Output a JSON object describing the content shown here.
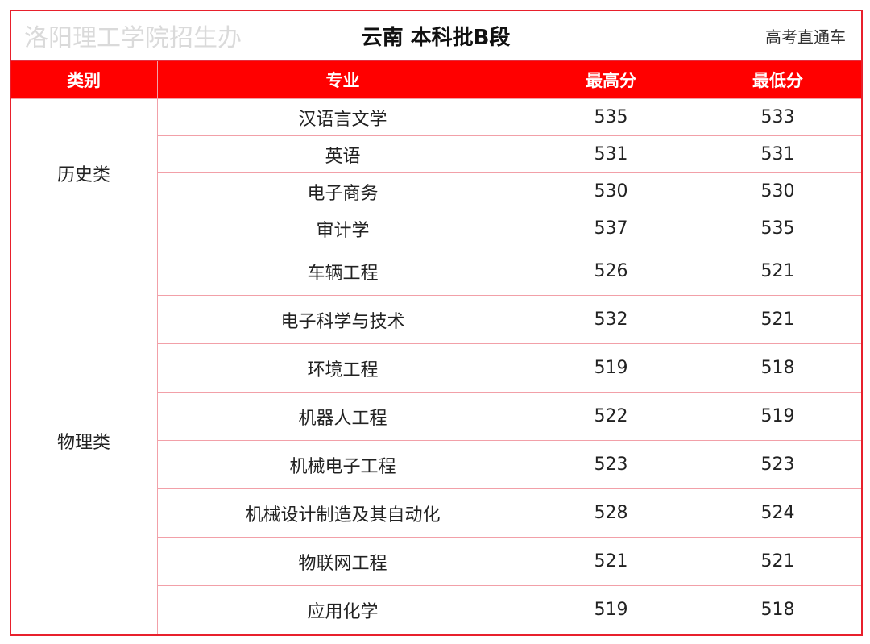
{
  "title": "云南 本科批B段",
  "headers": [
    "类别",
    "专业",
    "最高分",
    "最低分"
  ],
  "groups": [
    {
      "category": "历史类",
      "rows": [
        {
          "major": "汉语言文学",
          "max": "535",
          "min": "533"
        },
        {
          "major": "英语",
          "max": "531",
          "min": "531"
        },
        {
          "major": "电子商务",
          "max": "530",
          "min": "530"
        },
        {
          "major": "审计学",
          "max": "537",
          "min": "535"
        }
      ]
    },
    {
      "category": "物理类",
      "rows": [
        {
          "major": "车辆工程",
          "max": "526",
          "min": "521"
        },
        {
          "major": "电子科学与技术",
          "max": "532",
          "min": "521"
        },
        {
          "major": "环境工程",
          "max": "519",
          "min": "518"
        },
        {
          "major": "机器人工程",
          "max": "522",
          "min": "519"
        },
        {
          "major": "机械电子工程",
          "max": "523",
          "min": "523"
        },
        {
          "major": "机械设计制造及其自动化",
          "max": "528",
          "min": "524"
        },
        {
          "major": "物联网工程",
          "max": "521",
          "min": "521"
        },
        {
          "major": "应用化学",
          "max": "519",
          "min": "518"
        }
      ]
    }
  ],
  "watermark": "洛阳理工学院招生办",
  "brand": "高考直通车",
  "colors": {
    "header_bg": "#ff0000",
    "border": "#f2a0a8"
  }
}
